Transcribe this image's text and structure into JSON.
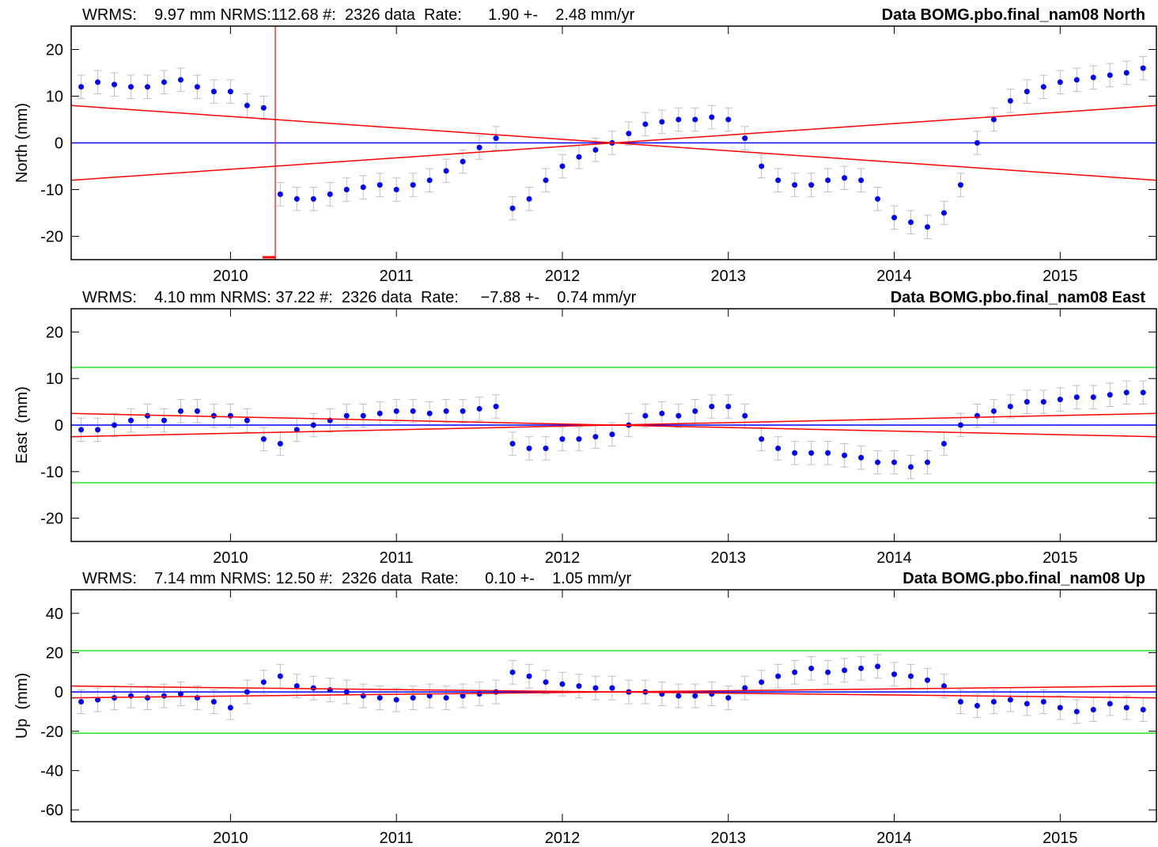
{
  "chart_data": [
    {
      "type": "scatter",
      "stats": "WRMS:    9.97 mm NRMS:112.68 #:  2326 data  Rate:      1.90 +-    2.48 mm/yr",
      "title": "Data BOMG.pbo.final_nam08 North",
      "ylabel": "North (mm)",
      "xlim": [
        2009.04,
        2015.58
      ],
      "xticks": [
        2010,
        2011,
        2012,
        2013,
        2014,
        2015
      ],
      "ylim": [
        -25,
        25
      ],
      "yticks": [
        -20,
        -10,
        0,
        10,
        20
      ],
      "zero_color": "#0000ff",
      "breaks": [
        2010.27
      ],
      "break_color": "#ff0000",
      "trend_lines": [
        {
          "color": "#ff0000",
          "values": [
            8,
            -8
          ]
        },
        {
          "color": "#ff0000",
          "values": [
            -8,
            8
          ]
        }
      ],
      "x": [
        2009.1,
        2009.2,
        2009.3,
        2009.4,
        2009.5,
        2009.6,
        2009.7,
        2009.8,
        2009.9,
        2010.0,
        2010.1,
        2010.2,
        2010.3,
        2010.4,
        2010.5,
        2010.6,
        2010.7,
        2010.8,
        2010.9,
        2011.0,
        2011.1,
        2011.2,
        2011.3,
        2011.4,
        2011.5,
        2011.6,
        2011.7,
        2011.8,
        2011.9,
        2012.0,
        2012.1,
        2012.2,
        2012.3,
        2012.4,
        2012.5,
        2012.6,
        2012.7,
        2012.8,
        2012.9,
        2013.0,
        2013.1,
        2013.2,
        2013.3,
        2013.4,
        2013.5,
        2013.6,
        2013.7,
        2013.8,
        2013.9,
        2014.0,
        2014.1,
        2014.2,
        2014.3,
        2014.4,
        2014.5,
        2014.6,
        2014.7,
        2014.8,
        2014.9,
        2015.0,
        2015.1,
        2015.2,
        2015.3,
        2015.4,
        2015.5
      ],
      "series": [
        {
          "color": "#0000ff",
          "error_color": "#c0c0c0",
          "error": 2.5,
          "values": [
            12,
            13,
            12.5,
            12,
            12,
            13,
            13.5,
            12,
            11,
            11,
            8,
            7.5,
            -11,
            -12,
            -12,
            -11,
            -10,
            -9.5,
            -9,
            -10,
            -9,
            -8,
            -6,
            -4,
            -1,
            1,
            -14,
            -12,
            -8,
            -5,
            -3,
            -1.5,
            0,
            2,
            4,
            4.5,
            5,
            5,
            5.5,
            5,
            1,
            -5,
            -8,
            -9,
            -9,
            -8,
            -7.5,
            -8,
            -12,
            -16,
            -17,
            -18,
            -15,
            -9,
            0,
            5,
            9,
            11,
            12,
            13,
            13.5,
            14,
            14.5,
            15,
            16
          ]
        }
      ]
    },
    {
      "type": "scatter",
      "stats": "WRMS:    4.10 mm NRMS: 37.22 #:  2326 data  Rate:     −7.88 +-    0.74 mm/yr",
      "title": "Data BOMG.pbo.final_nam08 East",
      "ylabel": "East  (mm)",
      "xlim": [
        2009.04,
        2015.58
      ],
      "xticks": [
        2010,
        2011,
        2012,
        2013,
        2014,
        2015
      ],
      "ylim": [
        -25,
        25
      ],
      "yticks": [
        -20,
        -10,
        0,
        10,
        20
      ],
      "zero_color": "#0000ff",
      "bounds": [
        12.4,
        -12.4
      ],
      "bound_color": "#00e000",
      "trend_lines": [
        {
          "color": "#ff0000",
          "values": [
            2.5,
            -2.5
          ]
        },
        {
          "color": "#ff0000",
          "values": [
            -2.5,
            2.5
          ]
        }
      ],
      "x": [
        2009.1,
        2009.2,
        2009.3,
        2009.4,
        2009.5,
        2009.6,
        2009.7,
        2009.8,
        2009.9,
        2010.0,
        2010.1,
        2010.2,
        2010.3,
        2010.4,
        2010.5,
        2010.6,
        2010.7,
        2010.8,
        2010.9,
        2011.0,
        2011.1,
        2011.2,
        2011.3,
        2011.4,
        2011.5,
        2011.6,
        2011.7,
        2011.8,
        2011.9,
        2012.0,
        2012.1,
        2012.2,
        2012.3,
        2012.4,
        2012.5,
        2012.6,
        2012.7,
        2012.8,
        2012.9,
        2013.0,
        2013.1,
        2013.2,
        2013.3,
        2013.4,
        2013.5,
        2013.6,
        2013.7,
        2013.8,
        2013.9,
        2014.0,
        2014.1,
        2014.2,
        2014.3,
        2014.4,
        2014.5,
        2014.6,
        2014.7,
        2014.8,
        2014.9,
        2015.0,
        2015.1,
        2015.2,
        2015.3,
        2015.4,
        2015.5
      ],
      "series": [
        {
          "color": "#0000ff",
          "error_color": "#c0c0c0",
          "error": 2.5,
          "values": [
            -1,
            -1,
            0,
            1,
            2,
            1,
            3,
            3,
            2,
            2,
            1,
            -3,
            -4,
            -1,
            0,
            1,
            2,
            2,
            2.5,
            3,
            3,
            2.5,
            3,
            3,
            3.5,
            4,
            -4,
            -5,
            -5,
            -3,
            -3,
            -2.5,
            -2,
            0,
            2,
            2.5,
            2,
            3,
            4,
            4,
            2,
            -3,
            -5,
            -6,
            -6,
            -6,
            -6.5,
            -7,
            -8,
            -8,
            -9,
            -8,
            -4,
            0,
            2,
            3,
            4,
            5,
            5,
            5.5,
            6,
            6,
            6.5,
            7,
            7
          ]
        }
      ]
    },
    {
      "type": "scatter",
      "stats": "WRMS:    7.14 mm NRMS: 12.50 #:  2326 data  Rate:      0.10 +-    1.05 mm/yr",
      "title": "Data BOMG.pbo.final_nam08 Up",
      "ylabel": "Up  (mm)",
      "xlim": [
        2009.04,
        2015.58
      ],
      "xticks": [
        2010,
        2011,
        2012,
        2013,
        2014,
        2015
      ],
      "ylim": [
        -66,
        52
      ],
      "yticks": [
        -60,
        -40,
        -20,
        0,
        20,
        40
      ],
      "zero_color": "#0000ff",
      "bounds": [
        21,
        -21
      ],
      "bound_color": "#00e000",
      "trend_lines": [
        {
          "color": "#ff0000",
          "values": [
            3,
            -3
          ]
        },
        {
          "color": "#ff0000",
          "values": [
            -3,
            3
          ]
        }
      ],
      "x": [
        2009.1,
        2009.2,
        2009.3,
        2009.4,
        2009.5,
        2009.6,
        2009.7,
        2009.8,
        2009.9,
        2010.0,
        2010.1,
        2010.2,
        2010.3,
        2010.4,
        2010.5,
        2010.6,
        2010.7,
        2010.8,
        2010.9,
        2011.0,
        2011.1,
        2011.2,
        2011.3,
        2011.4,
        2011.5,
        2011.6,
        2011.7,
        2011.8,
        2011.9,
        2012.0,
        2012.1,
        2012.2,
        2012.3,
        2012.4,
        2012.5,
        2012.6,
        2012.7,
        2012.8,
        2012.9,
        2013.0,
        2013.1,
        2013.2,
        2013.3,
        2013.4,
        2013.5,
        2013.6,
        2013.7,
        2013.8,
        2013.9,
        2014.0,
        2014.1,
        2014.2,
        2014.3,
        2014.4,
        2014.5,
        2014.6,
        2014.7,
        2014.8,
        2014.9,
        2015.0,
        2015.1,
        2015.2,
        2015.3,
        2015.4,
        2015.5
      ],
      "series": [
        {
          "color": "#0000ff",
          "error_color": "#c0c0c0",
          "error": 6,
          "values": [
            -5,
            -4,
            -3,
            -2,
            -3,
            -2,
            -1,
            -3,
            -5,
            -8,
            0,
            5,
            8,
            3,
            2,
            1,
            0,
            -2,
            -3,
            -4,
            -3,
            -2,
            -3,
            -2,
            -1,
            0,
            10,
            8,
            5,
            4,
            3,
            2,
            2,
            0,
            0,
            -1,
            -2,
            -2,
            -1,
            -3,
            2,
            5,
            8,
            10,
            12,
            10,
            11,
            12,
            13,
            9,
            8,
            6,
            3,
            -5,
            -7,
            -5,
            -4,
            -6,
            -5,
            -8,
            -10,
            -9,
            -6,
            -8,
            -9
          ]
        }
      ]
    }
  ]
}
